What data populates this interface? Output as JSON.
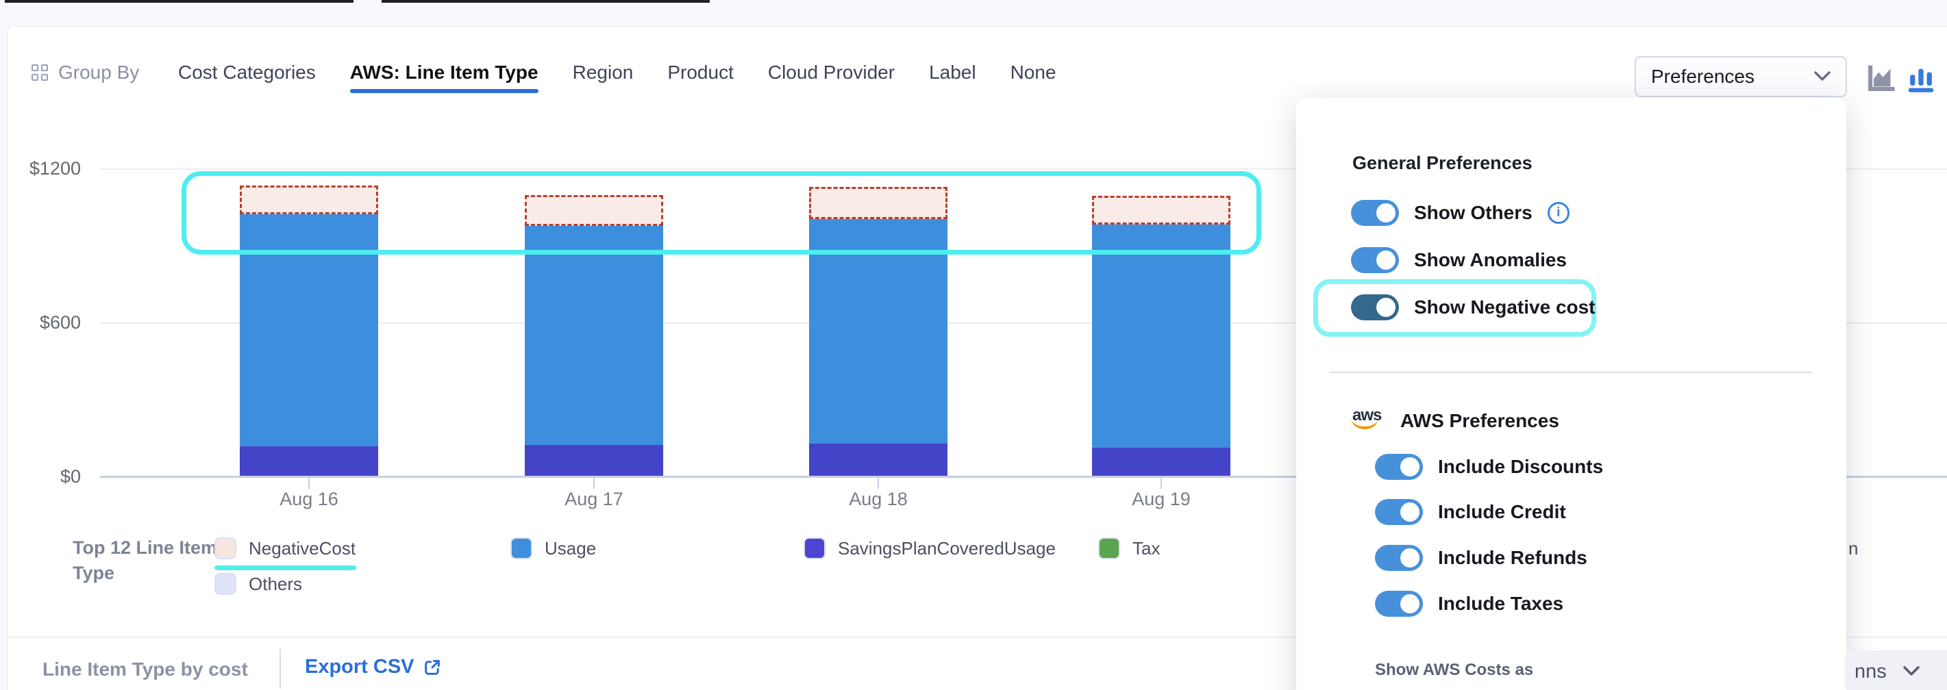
{
  "toolbar": {
    "group_by_label": "Group By",
    "tabs": [
      {
        "label": "Cost Categories",
        "active": false
      },
      {
        "label": "AWS: Line Item Type",
        "active": true
      },
      {
        "label": "Region",
        "active": false
      },
      {
        "label": "Product",
        "active": false
      },
      {
        "label": "Cloud Provider",
        "active": false
      },
      {
        "label": "Label",
        "active": false
      },
      {
        "label": "None",
        "active": false
      }
    ],
    "preferences_label": "Preferences",
    "chart_type_icons": [
      {
        "name": "area-chart-icon",
        "active": false
      },
      {
        "name": "bar-chart-icon",
        "active": true
      }
    ]
  },
  "chart_data": {
    "type": "bar",
    "stacked": true,
    "categories": [
      "Aug 16",
      "Aug 17",
      "Aug 18",
      "Aug 19"
    ],
    "series": [
      {
        "name": "SavingsPlanCoveredUsage",
        "color": "#4444c8",
        "values": [
          120,
          125,
          130,
          115
        ]
      },
      {
        "name": "Usage",
        "color": "#3e8ede",
        "values": [
          905,
          855,
          875,
          870
        ]
      },
      {
        "name": "NegativeCost",
        "color": "#f9ece8",
        "border_color": "#b7402d",
        "style": "dashed",
        "values": [
          110,
          120,
          125,
          110
        ]
      }
    ],
    "ylabel": "",
    "xlabel": "",
    "yticks": [
      {
        "label": "$0",
        "value": 0
      },
      {
        "label": "$600",
        "value": 600
      },
      {
        "label": "$1200",
        "value": 1200
      }
    ],
    "ylim": [
      0,
      1200
    ],
    "grid": true,
    "legend_position": "bottom",
    "annotation": "cyan rounded box highlighting NegativeCost segments on top of bars"
  },
  "legend": {
    "title": "Top 12 Line Item Type",
    "items": [
      {
        "label": "NegativeCost",
        "swatch": "#f7e6e0",
        "highlighted": true
      },
      {
        "label": "Others",
        "swatch": "#dfe3fa",
        "highlighted": false
      },
      {
        "label": "Usage",
        "swatch": "#3e8ede",
        "highlighted": false
      },
      {
        "label": "SavingsPlanCoveredUsage",
        "swatch": "#4d44d4",
        "highlighted": false
      },
      {
        "label": "Tax",
        "swatch": "#5aa54e",
        "highlighted": false
      }
    ],
    "cutoff_fragment": "n"
  },
  "footer": {
    "title": "Line Item Type by cost",
    "export_label": "Export CSV",
    "columns_label_fragment": "nns"
  },
  "preferences_panel": {
    "general_title": "General Preferences",
    "general_toggles": [
      {
        "label": "Show Others",
        "on": true,
        "info": true,
        "highlighted": false,
        "dark": false
      },
      {
        "label": "Show Anomalies",
        "on": true,
        "info": false,
        "highlighted": false,
        "dark": false
      },
      {
        "label": "Show Negative cost",
        "on": true,
        "info": false,
        "highlighted": true,
        "dark": true
      }
    ],
    "aws_title": "AWS Preferences",
    "aws_toggles": [
      {
        "label": "Include Discounts",
        "on": true
      },
      {
        "label": "Include Credit",
        "on": true
      },
      {
        "label": "Include Refunds",
        "on": true
      },
      {
        "label": "Include Taxes",
        "on": true
      }
    ],
    "show_costs_label": "Show AWS Costs as"
  },
  "colors": {
    "accent_blue": "#2e6fd9",
    "toggle_on": "#4791db",
    "toggle_dark": "#34688f",
    "cyan_highlight": "#4deef2",
    "usage": "#3e8ede",
    "savings_plan": "#4444c8",
    "negative_fill": "#f9ece8",
    "negative_border": "#b7402d",
    "tax_green": "#5aa54e"
  }
}
